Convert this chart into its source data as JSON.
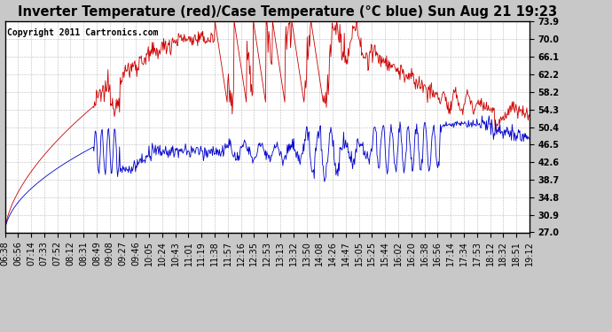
{
  "title": "Inverter Temperature (red)/Case Temperature (°C blue) Sun Aug 21 19:23",
  "copyright_text": "Copyright 2011 Cartronics.com",
  "yticks": [
    27.0,
    30.9,
    34.8,
    38.7,
    42.6,
    46.5,
    50.4,
    54.3,
    58.2,
    62.2,
    66.1,
    70.0,
    73.9
  ],
  "xtick_labels": [
    "06:38",
    "06:56",
    "07:14",
    "07:33",
    "07:52",
    "08:12",
    "08:31",
    "08:49",
    "09:08",
    "09:27",
    "09:46",
    "10:05",
    "10:24",
    "10:43",
    "11:01",
    "11:19",
    "11:38",
    "11:57",
    "12:16",
    "12:35",
    "12:53",
    "13:13",
    "13:32",
    "13:50",
    "14:08",
    "14:26",
    "14:47",
    "15:05",
    "15:25",
    "15:44",
    "16:02",
    "16:20",
    "16:38",
    "16:56",
    "17:14",
    "17:34",
    "17:53",
    "18:12",
    "18:32",
    "18:51",
    "19:12"
  ],
  "bg_color": "#c8c8c8",
  "plot_bg_color": "#ffffff",
  "grid_color": "#aaaaaa",
  "red_color": "#cc0000",
  "blue_color": "#0000cc",
  "title_fontsize": 10.5,
  "tick_fontsize": 7,
  "copyright_fontsize": 7,
  "ymin": 27.0,
  "ymax": 73.9
}
